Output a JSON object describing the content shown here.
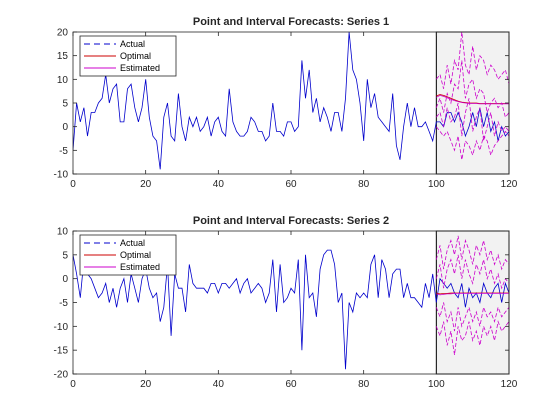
{
  "chart_data": [
    {
      "type": "line",
      "title": "Point and Interval Forecasts: Series 1",
      "xlabel": "",
      "ylabel": "",
      "xlim": [
        0,
        120
      ],
      "ylim": [
        -10,
        20
      ],
      "xticks": [
        0,
        20,
        40,
        60,
        80,
        100,
        120
      ],
      "yticks": [
        -10,
        -5,
        0,
        5,
        10,
        15,
        20
      ],
      "grid": false,
      "legend_position": "top-left",
      "forecast_region": [
        100,
        120
      ],
      "forecast_region_color": "#f2f2f2",
      "series": [
        {
          "name": "Actual",
          "color": "#0000cc",
          "dash": "solid",
          "x": [
            0,
            1,
            2,
            3,
            4,
            5,
            6,
            7,
            8,
            9,
            10,
            11,
            12,
            13,
            14,
            15,
            16,
            17,
            18,
            19,
            20,
            21,
            22,
            23,
            24,
            25,
            26,
            27,
            28,
            29,
            30,
            31,
            32,
            33,
            34,
            35,
            36,
            37,
            38,
            39,
            40,
            41,
            42,
            43,
            44,
            45,
            46,
            47,
            48,
            49,
            50,
            51,
            52,
            53,
            54,
            55,
            56,
            57,
            58,
            59,
            60,
            61,
            62,
            63,
            64,
            65,
            66,
            67,
            68,
            69,
            70,
            71,
            72,
            73,
            74,
            75,
            76,
            77,
            78,
            79,
            80,
            81,
            82,
            83,
            84,
            85,
            86,
            87,
            88,
            89,
            90,
            91,
            92,
            93,
            94,
            95,
            96,
            97,
            98,
            99,
            100,
            101,
            102,
            103,
            104,
            105,
            106,
            107,
            108,
            109,
            110,
            111,
            112,
            113,
            114,
            115,
            116,
            117,
            118,
            119,
            120
          ],
          "values": [
            -5,
            5,
            1,
            4,
            -2,
            3,
            3,
            5,
            6,
            11,
            5,
            8,
            9,
            1,
            1,
            8,
            9,
            4,
            1,
            4,
            10,
            2,
            -2,
            -3,
            -9,
            2,
            5,
            -2,
            -3,
            7,
            0,
            -3,
            2,
            0,
            2,
            -1,
            0,
            2,
            -2,
            1,
            2,
            -1,
            -2,
            8,
            1,
            -1,
            -2,
            -2,
            -1,
            2,
            1,
            -1,
            -1,
            -3,
            -2,
            5,
            -1,
            -1,
            -2,
            1,
            1,
            -1,
            0,
            14,
            6,
            12,
            3,
            6,
            1,
            4,
            2,
            -1,
            3,
            3,
            -1,
            6,
            20,
            12,
            10,
            5,
            -3,
            10,
            4,
            7,
            2,
            1,
            0,
            -1,
            7,
            -4,
            -7,
            0,
            5,
            0,
            4,
            0,
            0,
            1,
            -1,
            -3,
            1,
            1,
            0,
            3,
            3,
            1,
            3,
            1,
            -2,
            0,
            3,
            0,
            4,
            0,
            3,
            -1,
            1,
            -3,
            0,
            -2,
            -1
          ],
          "x_note": "values end at x=120"
        },
        {
          "name": "Optimal",
          "color": "#cc0000",
          "dash": "solid",
          "x": [
            100,
            101,
            102,
            103,
            104,
            105,
            106,
            107,
            108,
            109,
            110,
            111,
            112,
            113,
            114,
            115,
            116,
            117,
            118,
            119,
            120
          ],
          "values": [
            6.5,
            6.8,
            6.6,
            6.3,
            6.0,
            5.7,
            5.4,
            5.2,
            5.1,
            5.0,
            5.0,
            5.0,
            4.9,
            4.9,
            4.9,
            4.9,
            4.9,
            4.9,
            4.9,
            4.9,
            4.9
          ]
        },
        {
          "name": "Estimated",
          "color": "#cc00cc",
          "dash": "solid",
          "x": [
            100,
            101,
            102,
            103,
            104,
            105,
            106,
            107,
            108,
            109,
            110,
            111,
            112,
            113,
            114,
            115,
            116,
            117,
            118,
            119,
            120
          ],
          "values": [
            6.2,
            6.6,
            6.4,
            6.1,
            5.8,
            5.5,
            5.3,
            5.1,
            5.0,
            4.9,
            4.9,
            4.9,
            4.8,
            4.8,
            4.8,
            4.8,
            4.8,
            4.8,
            4.8,
            4.8,
            4.8
          ]
        },
        {
          "name": "",
          "color": "#cc00cc",
          "dash": "dashed",
          "x": [
            100,
            101,
            102,
            103,
            104,
            105,
            106,
            107,
            108,
            109,
            110,
            111,
            112,
            113,
            114,
            115,
            116,
            117,
            118,
            119,
            120
          ],
          "values": [
            10,
            11,
            8,
            13,
            9,
            14,
            12,
            20,
            13,
            11,
            17,
            12,
            15,
            14,
            11,
            13,
            12,
            10,
            11,
            12,
            9
          ]
        },
        {
          "name": "",
          "color": "#cc00cc",
          "dash": "dashed",
          "x": [
            100,
            101,
            102,
            103,
            104,
            105,
            106,
            107,
            108,
            109,
            110,
            111,
            112,
            113,
            114,
            115,
            116,
            117,
            118,
            119,
            120
          ],
          "values": [
            4,
            6,
            3,
            7,
            5,
            9,
            8,
            14,
            6,
            9,
            10,
            6,
            8,
            7,
            3,
            5,
            6,
            4,
            5,
            2,
            3
          ]
        },
        {
          "name": "",
          "color": "#cc00cc",
          "dash": "dashed",
          "x": [
            100,
            101,
            102,
            103,
            104,
            105,
            106,
            107,
            108,
            109,
            110,
            111,
            112,
            113,
            114,
            115,
            116,
            117,
            118,
            119,
            120
          ],
          "values": [
            2,
            3,
            0,
            4,
            1,
            2,
            5,
            -2,
            3,
            6,
            -1,
            2,
            4,
            -3,
            0,
            3,
            -2,
            1,
            -1,
            0,
            -1
          ]
        },
        {
          "name": "",
          "color": "#cc00cc",
          "dash": "dashed",
          "x": [
            100,
            101,
            102,
            103,
            104,
            105,
            106,
            107,
            108,
            109,
            110,
            111,
            112,
            113,
            114,
            115,
            116,
            117,
            118,
            119,
            120
          ],
          "values": [
            0,
            -1,
            -2,
            -1,
            -3,
            -5,
            -2,
            -7,
            -3,
            -4,
            -6,
            -3,
            -5,
            -2,
            -3,
            -6,
            -4,
            -3,
            -2,
            -1,
            -2
          ]
        }
      ]
    },
    {
      "type": "line",
      "title": "Point and Interval Forecasts: Series 2",
      "xlabel": "",
      "ylabel": "",
      "xlim": [
        0,
        120
      ],
      "ylim": [
        -20,
        10
      ],
      "xticks": [
        0,
        20,
        40,
        60,
        80,
        100,
        120
      ],
      "yticks": [
        -20,
        -15,
        -10,
        -5,
        0,
        5,
        10
      ],
      "grid": false,
      "legend_position": "top-left",
      "forecast_region": [
        100,
        120
      ],
      "forecast_region_color": "#f2f2f2",
      "series": [
        {
          "name": "Actual",
          "color": "#0000cc",
          "dash": "solid",
          "x": [
            0,
            1,
            2,
            3,
            4,
            5,
            6,
            7,
            8,
            9,
            10,
            11,
            12,
            13,
            14,
            15,
            16,
            17,
            18,
            19,
            20,
            21,
            22,
            23,
            24,
            25,
            26,
            27,
            28,
            29,
            30,
            31,
            32,
            33,
            34,
            35,
            36,
            37,
            38,
            39,
            40,
            41,
            42,
            43,
            44,
            45,
            46,
            47,
            48,
            49,
            50,
            51,
            52,
            53,
            54,
            55,
            56,
            57,
            58,
            59,
            60,
            61,
            62,
            63,
            64,
            65,
            66,
            67,
            68,
            69,
            70,
            71,
            72,
            73,
            74,
            75,
            76,
            77,
            78,
            79,
            80,
            81,
            82,
            83,
            84,
            85,
            86,
            87,
            88,
            89,
            90,
            91,
            92,
            93,
            94,
            95,
            96,
            97,
            98,
            99,
            100,
            101,
            102,
            103,
            104,
            105,
            106,
            107,
            108,
            109,
            110,
            111,
            112,
            113,
            114,
            115,
            116,
            117,
            118,
            119,
            120
          ],
          "values": [
            5,
            1,
            -4,
            4,
            1,
            0,
            -2,
            -4,
            -3,
            -1,
            -5,
            -2,
            -6,
            -2,
            0,
            -5,
            1,
            -2,
            -5,
            0,
            2,
            -2,
            -4,
            -3,
            -9,
            -6,
            3,
            -12,
            1,
            -2,
            -2,
            -7,
            3,
            -1,
            -2,
            -2,
            -2,
            -3,
            -1,
            -1,
            -3,
            -1,
            -1,
            -2,
            -1,
            0,
            -3,
            -1,
            0,
            -3,
            -2,
            -1,
            -2,
            -5,
            -3,
            4,
            -7,
            3,
            -5,
            -4,
            -2,
            -3,
            4,
            -15,
            5,
            -4,
            -3,
            -8,
            2,
            5,
            6,
            6,
            3,
            -5,
            -3,
            -19,
            -5,
            -7,
            -3,
            -4,
            -3,
            -4,
            3,
            5,
            -4,
            4,
            2,
            -4,
            1,
            2,
            2,
            -4,
            -1,
            -4,
            -4,
            -5,
            -6,
            -1,
            -4,
            1,
            -5,
            0,
            -1,
            -2,
            -1,
            -3,
            -4,
            -1,
            -6,
            -2,
            -4,
            -3,
            -5,
            -1,
            -3,
            -4,
            -2,
            -1,
            -5,
            -1,
            -3
          ],
          "x_note": "values end at x=120"
        },
        {
          "name": "Optimal",
          "color": "#cc0000",
          "dash": "solid",
          "x": [
            100,
            101,
            102,
            103,
            104,
            105,
            106,
            107,
            108,
            109,
            110,
            111,
            112,
            113,
            114,
            115,
            116,
            117,
            118,
            119,
            120
          ],
          "values": [
            -3.0,
            -3.2,
            -3.1,
            -3.1,
            -3.0,
            -3.0,
            -3.0,
            -3.0,
            -3.0,
            -3.0,
            -3.0,
            -3.0,
            -3.0,
            -3.0,
            -3.0,
            -3.0,
            -3.0,
            -3.0,
            -3.0,
            -3.0,
            -3.0
          ]
        },
        {
          "name": "Estimated",
          "color": "#cc00cc",
          "dash": "solid",
          "x": [
            100,
            101,
            102,
            103,
            104,
            105,
            106,
            107,
            108,
            109,
            110,
            111,
            112,
            113,
            114,
            115,
            116,
            117,
            118,
            119,
            120
          ],
          "values": [
            -3.2,
            -3.4,
            -3.3,
            -3.2,
            -3.2,
            -3.1,
            -3.1,
            -3.1,
            -3.1,
            -3.1,
            -3.1,
            -3.1,
            -3.1,
            -3.1,
            -3.1,
            -3.1,
            -3.1,
            -3.1,
            -3.1,
            -3.1,
            -3.1
          ]
        },
        {
          "name": "",
          "color": "#cc00cc",
          "dash": "dashed",
          "x": [
            100,
            101,
            102,
            103,
            104,
            105,
            106,
            107,
            108,
            109,
            110,
            111,
            112,
            113,
            114,
            115,
            116,
            117,
            118,
            119,
            120
          ],
          "values": [
            4,
            7,
            2,
            6,
            8,
            5,
            9,
            4,
            8,
            6,
            3,
            7,
            5,
            8,
            4,
            6,
            3,
            5,
            2,
            4,
            3
          ]
        },
        {
          "name": "",
          "color": "#cc00cc",
          "dash": "dashed",
          "x": [
            100,
            101,
            102,
            103,
            104,
            105,
            106,
            107,
            108,
            109,
            110,
            111,
            112,
            113,
            114,
            115,
            116,
            117,
            118,
            119,
            120
          ],
          "values": [
            0,
            3,
            -2,
            2,
            4,
            1,
            5,
            0,
            4,
            1,
            -1,
            3,
            1,
            4,
            0,
            2,
            -1,
            1,
            -2,
            0,
            -1
          ]
        },
        {
          "name": "",
          "color": "#cc00cc",
          "dash": "dashed",
          "x": [
            100,
            101,
            102,
            103,
            104,
            105,
            106,
            107,
            108,
            109,
            110,
            111,
            112,
            113,
            114,
            115,
            116,
            117,
            118,
            119,
            120
          ],
          "values": [
            -6,
            -8,
            -5,
            -9,
            -7,
            -11,
            -6,
            -10,
            -8,
            -6,
            -9,
            -7,
            -10,
            -6,
            -8,
            -7,
            -9,
            -6,
            -8,
            -7,
            -6
          ]
        },
        {
          "name": "",
          "color": "#cc00cc",
          "dash": "dashed",
          "x": [
            100,
            101,
            102,
            103,
            104,
            105,
            106,
            107,
            108,
            109,
            110,
            111,
            112,
            113,
            114,
            115,
            116,
            117,
            118,
            119,
            120
          ],
          "values": [
            -10,
            -12,
            -9,
            -14,
            -11,
            -16,
            -10,
            -13,
            -12,
            -9,
            -13,
            -11,
            -14,
            -10,
            -12,
            -10,
            -13,
            -9,
            -11,
            -10,
            -9
          ]
        }
      ]
    }
  ]
}
